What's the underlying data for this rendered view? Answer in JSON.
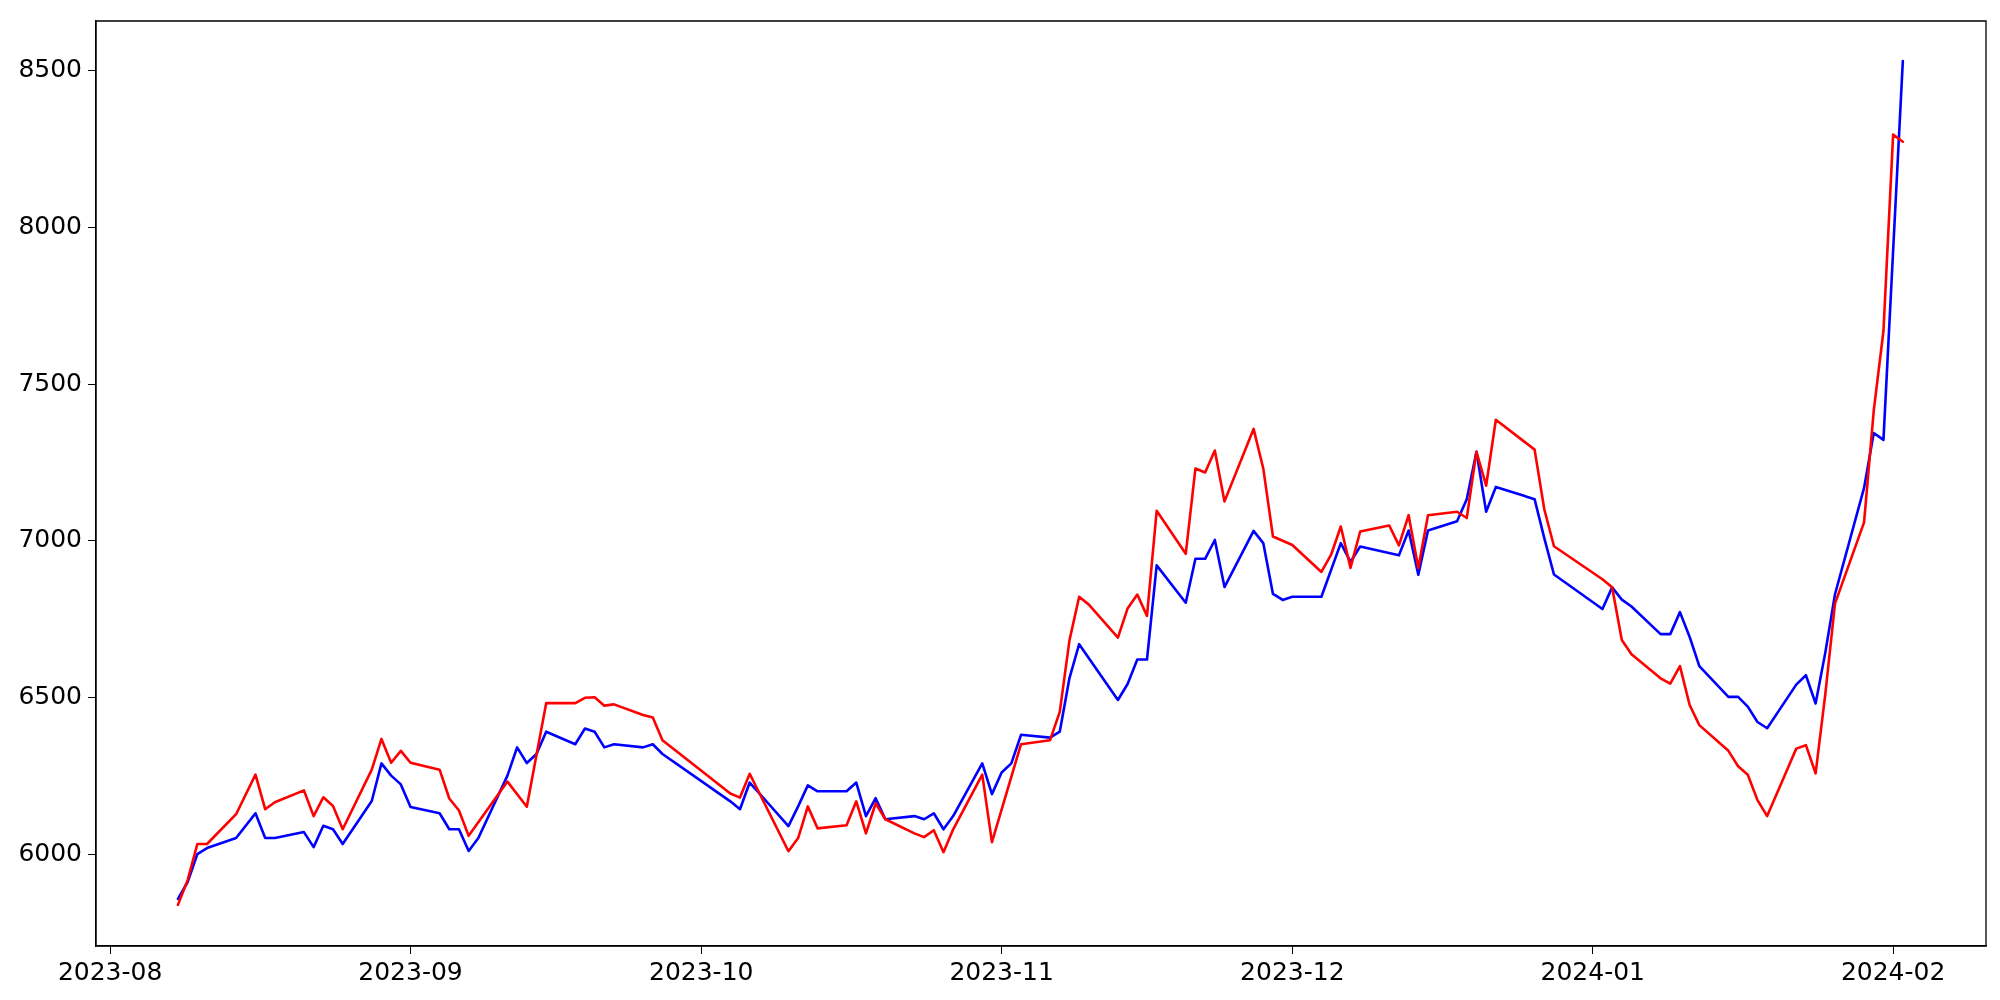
{
  "chart_data": {
    "type": "line",
    "xlim": [
      "2023-07-30T13:00",
      "2024-02-10T14:00"
    ],
    "ylim": [
      5709,
      8657
    ],
    "xticks": [
      "2023-08",
      "2023-09",
      "2023-10",
      "2023-11",
      "2023-12",
      "2024-01",
      "2024-02"
    ],
    "yticks": [
      6000,
      6500,
      7000,
      7500,
      8000,
      8500
    ],
    "grid": false,
    "legend": false,
    "line_style": "solid",
    "marker": "none",
    "series": [
      {
        "color": "#ff0000",
        "x": [
          "2023-08-08",
          "2023-08-09",
          "2023-08-10",
          "2023-08-11",
          "2023-08-14",
          "2023-08-16",
          "2023-08-17",
          "2023-08-18",
          "2023-08-21",
          "2023-08-22",
          "2023-08-23",
          "2023-08-24",
          "2023-08-25",
          "2023-08-28",
          "2023-08-29",
          "2023-08-30",
          "2023-08-31",
          "2023-09-01",
          "2023-09-04",
          "2023-09-05",
          "2023-09-06",
          "2023-09-07",
          "2023-09-11",
          "2023-09-13",
          "2023-09-15",
          "2023-09-18",
          "2023-09-19",
          "2023-09-20",
          "2023-09-21",
          "2023-09-22",
          "2023-09-25",
          "2023-09-26",
          "2023-09-27",
          "2023-10-04",
          "2023-10-05",
          "2023-10-06",
          "2023-10-10",
          "2023-10-11",
          "2023-10-12",
          "2023-10-13",
          "2023-10-16",
          "2023-10-17",
          "2023-10-18",
          "2023-10-19",
          "2023-10-20",
          "2023-10-23",
          "2023-10-24",
          "2023-10-25",
          "2023-10-26",
          "2023-10-27",
          "2023-10-30",
          "2023-10-31",
          "2023-11-03",
          "2023-11-06",
          "2023-11-07",
          "2023-11-08",
          "2023-11-09",
          "2023-11-10",
          "2023-11-13",
          "2023-11-14",
          "2023-11-15",
          "2023-11-16",
          "2023-11-17",
          "2023-11-20",
          "2023-11-21",
          "2023-11-22",
          "2023-11-23",
          "2023-11-24",
          "2023-11-27",
          "2023-11-28",
          "2023-11-29",
          "2023-12-01",
          "2023-12-04",
          "2023-12-05",
          "2023-12-06",
          "2023-12-07",
          "2023-12-08",
          "2023-12-11",
          "2023-12-12",
          "2023-12-13",
          "2023-12-14",
          "2023-12-15",
          "2023-12-18",
          "2023-12-19",
          "2023-12-20",
          "2023-12-21",
          "2023-12-22",
          "2023-12-26",
          "2023-12-27",
          "2023-12-28",
          "2024-01-02",
          "2024-01-03",
          "2024-01-04",
          "2024-01-05",
          "2024-01-08",
          "2024-01-09",
          "2024-01-10",
          "2024-01-11",
          "2024-01-12",
          "2024-01-15",
          "2024-01-16",
          "2024-01-17",
          "2024-01-18",
          "2024-01-19",
          "2024-01-22",
          "2024-01-23",
          "2024-01-24",
          "2024-01-25",
          "2024-01-26",
          "2024-01-29",
          "2024-01-30",
          "2024-01-31",
          "2024-02-01",
          "2024-02-02"
        ],
        "values": [
          5840,
          5919,
          6034,
          6034,
          6129,
          6255,
          6145,
          6167,
          6205,
          6123,
          6183,
          6155,
          6081,
          6271,
          6369,
          6293,
          6331,
          6293,
          6271,
          6179,
          6141,
          6060,
          6233,
          6153,
          6483,
          6483,
          6500,
          6502,
          6475,
          6479,
          6445,
          6437,
          6365,
          6195,
          6182,
          6258,
          6011,
          6053,
          6154,
          6084,
          6094,
          6170,
          6068,
          6164,
          6113,
          6068,
          6056,
          6078,
          6008,
          6081,
          6255,
          6040,
          6352,
          6365,
          6455,
          6683,
          6822,
          6797,
          6692,
          6785,
          6829,
          6761,
          7096,
          6959,
          7231,
          7218,
          7288,
          7126,
          7357,
          7231,
          7014,
          6987,
          6901,
          6956,
          7046,
          6914,
          7030,
          7049,
          6986,
          7082,
          6914,
          7082,
          7093,
          7073,
          7284,
          7176,
          7386,
          7291,
          7101,
          6983,
          6878,
          6852,
          6684,
          6639,
          6562,
          6545,
          6601,
          6477,
          6413,
          6331,
          6282,
          6255,
          6174,
          6123,
          6338,
          6349,
          6259,
          6512,
          6800,
          7059,
          7415,
          7669,
          8295,
          8272
        ]
      },
      {
        "color": "#0000ff",
        "x": [
          "2023-08-08",
          "2023-08-09",
          "2023-08-10",
          "2023-08-11",
          "2023-08-14",
          "2023-08-16",
          "2023-08-17",
          "2023-08-18",
          "2023-08-21",
          "2023-08-22",
          "2023-08-23",
          "2023-08-24",
          "2023-08-25",
          "2023-08-28",
          "2023-08-29",
          "2023-08-30",
          "2023-08-31",
          "2023-09-01",
          "2023-09-04",
          "2023-09-05",
          "2023-09-06",
          "2023-09-07",
          "2023-09-08",
          "2023-09-11",
          "2023-09-12",
          "2023-09-13",
          "2023-09-14",
          "2023-09-15",
          "2023-09-18",
          "2023-09-19",
          "2023-09-20",
          "2023-09-21",
          "2023-09-22",
          "2023-09-25",
          "2023-09-26",
          "2023-09-27",
          "2023-10-04",
          "2023-10-05",
          "2023-10-06",
          "2023-10-10",
          "2023-10-11",
          "2023-10-12",
          "2023-10-13",
          "2023-10-16",
          "2023-10-17",
          "2023-10-18",
          "2023-10-19",
          "2023-10-20",
          "2023-10-23",
          "2023-10-24",
          "2023-10-25",
          "2023-10-26",
          "2023-10-27",
          "2023-10-30",
          "2023-10-31",
          "2023-11-01",
          "2023-11-02",
          "2023-11-03",
          "2023-11-06",
          "2023-11-07",
          "2023-11-08",
          "2023-11-09",
          "2023-11-13",
          "2023-11-14",
          "2023-11-15",
          "2023-11-16",
          "2023-11-17",
          "2023-11-20",
          "2023-11-21",
          "2023-11-22",
          "2023-11-23",
          "2023-11-24",
          "2023-11-27",
          "2023-11-28",
          "2023-11-29",
          "2023-11-30",
          "2023-12-01",
          "2023-12-04",
          "2023-12-06",
          "2023-12-07",
          "2023-12-08",
          "2023-12-12",
          "2023-12-13",
          "2023-12-14",
          "2023-12-15",
          "2023-12-18",
          "2023-12-19",
          "2023-12-20",
          "2023-12-21",
          "2023-12-22",
          "2023-12-26",
          "2023-12-27",
          "2023-12-28",
          "2024-01-02",
          "2024-01-03",
          "2024-01-04",
          "2024-01-05",
          "2024-01-08",
          "2024-01-09",
          "2024-01-10",
          "2024-01-11",
          "2024-01-12",
          "2024-01-15",
          "2024-01-16",
          "2024-01-17",
          "2024-01-18",
          "2024-01-19",
          "2024-01-22",
          "2024-01-23",
          "2024-01-24",
          "2024-01-25",
          "2024-01-26",
          "2024-01-29",
          "2024-01-30",
          "2024-01-31",
          "2024-02-02"
        ],
        "values": [
          5859,
          5913,
          6002,
          6021,
          6053,
          6132,
          6053,
          6053,
          6072,
          6024,
          6092,
          6081,
          6034,
          6171,
          6291,
          6252,
          6224,
          6152,
          6132,
          6081,
          6081,
          6012,
          6053,
          6252,
          6342,
          6292,
          6321,
          6392,
          6352,
          6402,
          6392,
          6342,
          6352,
          6342,
          6352,
          6321,
          6170,
          6145,
          6230,
          6091,
          6154,
          6221,
          6202,
          6202,
          6230,
          6123,
          6180,
          6113,
          6123,
          6113,
          6132,
          6081,
          6123,
          6291,
          6193,
          6262,
          6291,
          6382,
          6373,
          6392,
          6563,
          6671,
          6493,
          6544,
          6622,
          6622,
          6922,
          6803,
          6943,
          6943,
          7003,
          6853,
          7032,
          6993,
          6831,
          6812,
          6822,
          6822,
          6993,
          6933,
          6982,
          6954,
          7033,
          6892,
          7033,
          7063,
          7133,
          7284,
          7093,
          7172,
          7133,
          7009,
          6893,
          6783,
          6852,
          6813,
          6791,
          6703,
          6703,
          6773,
          6694,
          6601,
          6503,
          6503,
          6472,
          6423,
          6403,
          6542,
          6572,
          6482,
          6644,
          6830,
          7169,
          7344,
          7322,
          8529
        ]
      }
    ]
  }
}
